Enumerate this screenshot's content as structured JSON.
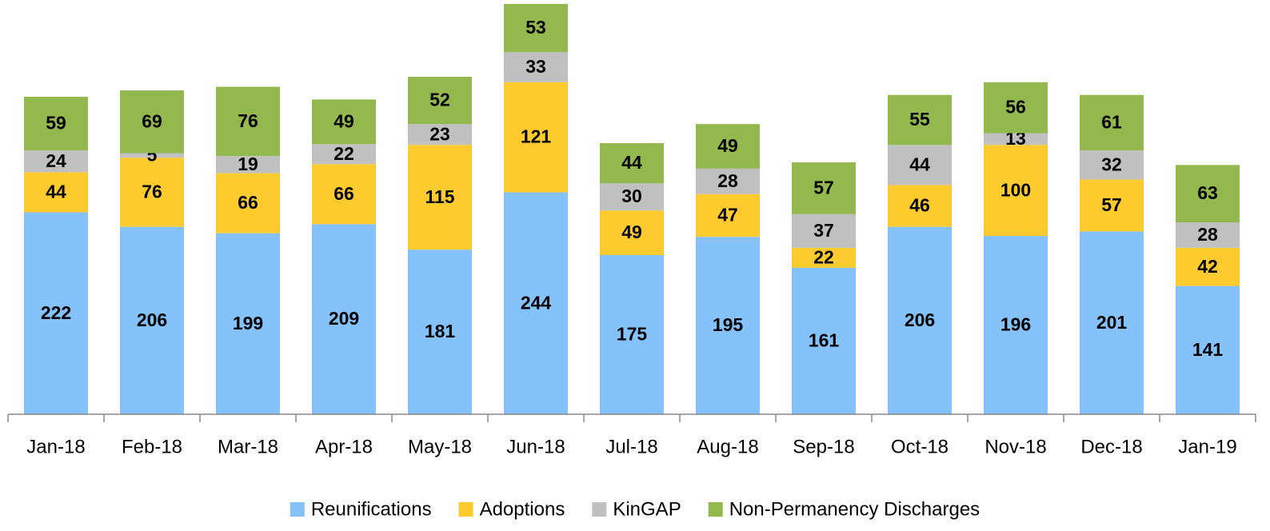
{
  "chart_data": {
    "type": "stacked_bar",
    "categories": [
      "Jan-18",
      "Feb-18",
      "Mar-18",
      "Apr-18",
      "May-18",
      "Jun-18",
      "Jul-18",
      "Aug-18",
      "Sep-18",
      "Oct-18",
      "Nov-18",
      "Dec-18",
      "Jan-19"
    ],
    "series": [
      {
        "name": "Reunifications",
        "color": "#85c1fa",
        "values": [
          222,
          206,
          199,
          209,
          181,
          244,
          175,
          195,
          161,
          206,
          196,
          201,
          141
        ]
      },
      {
        "name": "Adoptions",
        "color": "#ffcb2f",
        "values": [
          44,
          76,
          66,
          66,
          115,
          121,
          49,
          47,
          22,
          46,
          100,
          57,
          42
        ]
      },
      {
        "name": "KinGAP",
        "color": "#c0c0c0",
        "values": [
          24,
          5,
          19,
          22,
          23,
          33,
          30,
          28,
          37,
          44,
          13,
          32,
          28
        ]
      },
      {
        "name": "Non-Permanency Discharges",
        "color": "#92b84e",
        "values": [
          59,
          69,
          76,
          49,
          52,
          53,
          44,
          49,
          57,
          55,
          56,
          61,
          63
        ]
      }
    ],
    "legend": "bottom"
  }
}
